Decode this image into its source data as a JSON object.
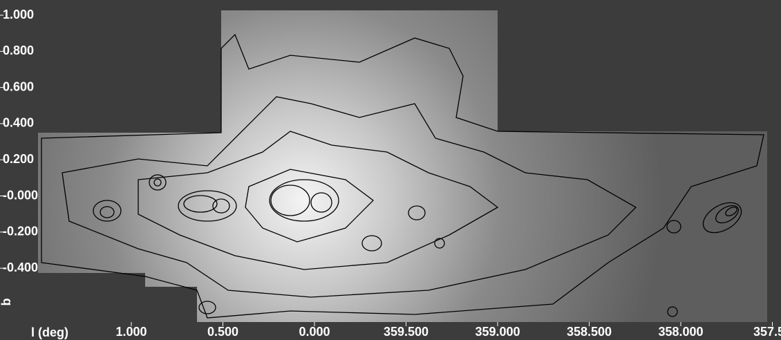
{
  "axes": {
    "x_label": "l (deg)",
    "x_ticks": [
      "1.000",
      "0.500",
      "0.000",
      "359.500",
      "359.000",
      "358.500",
      "358.000",
      "357.50"
    ],
    "y_label": "b",
    "y_ticks": [
      "1.000",
      "0.800",
      "0.600",
      "0.400",
      "0.200",
      "-0.000",
      "-0.200",
      "-0.400"
    ]
  }
}
